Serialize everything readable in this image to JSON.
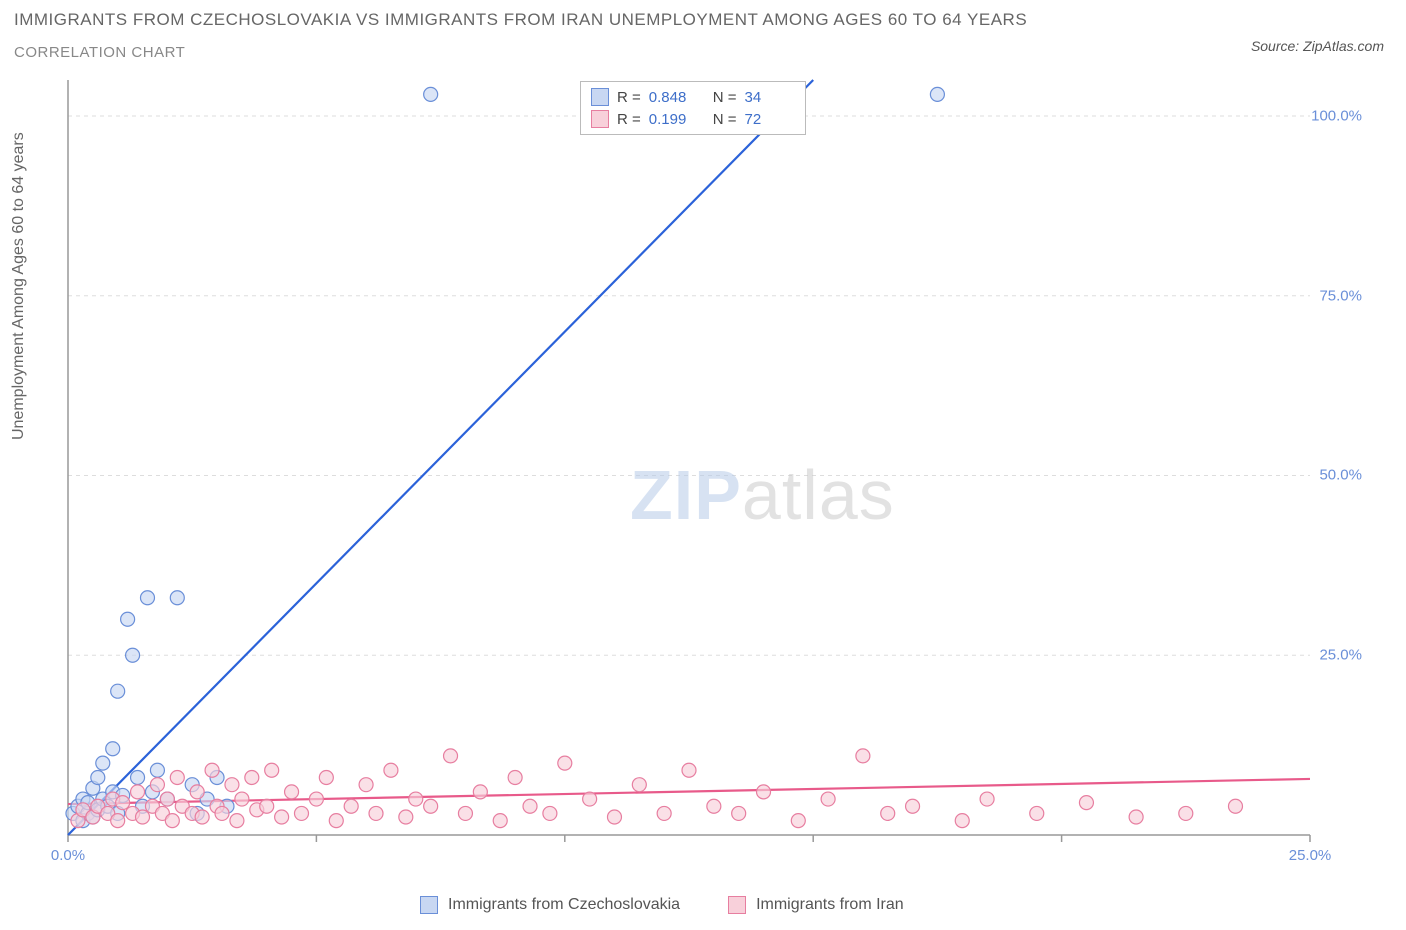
{
  "title": {
    "line1": "IMMIGRANTS FROM CZECHOSLOVAKIA VS IMMIGRANTS FROM IRAN UNEMPLOYMENT AMONG AGES 60 TO 64 YEARS",
    "line2": "CORRELATION CHART"
  },
  "source_text": "Source: ZipAtlas.com",
  "y_axis_label": "Unemployment Among Ages 60 to 64 years",
  "chart": {
    "type": "scatter-with-regression",
    "background_color": "#ffffff",
    "grid_color": "#dddddd",
    "axis_color": "#999999",
    "xlim": [
      0,
      25
    ],
    "ylim": [
      0,
      105
    ],
    "x_ticks": [
      0,
      5,
      10,
      15,
      20,
      25
    ],
    "x_tick_labels": [
      "0.0%",
      "",
      "",
      "",
      "",
      "25.0%"
    ],
    "y_ticks": [
      25,
      50,
      75,
      100
    ],
    "y_tick_labels": [
      "25.0%",
      "50.0%",
      "75.0%",
      "100.0%"
    ],
    "marker_radius": 7,
    "marker_stroke_width": 1.2,
    "line_width": 2.2,
    "series": [
      {
        "name": "Immigrants from Czechoslovakia",
        "color_fill": "#c8d7f2",
        "color_stroke": "#6a8fd8",
        "line_color": "#2b62d9",
        "R": "0.848",
        "N": "34",
        "regression": {
          "x1": 0,
          "y1": 0,
          "x2": 15.0,
          "y2": 105
        },
        "points": [
          [
            0.1,
            3.0
          ],
          [
            0.2,
            4.0
          ],
          [
            0.3,
            2.0
          ],
          [
            0.3,
            5.0
          ],
          [
            0.4,
            3.0
          ],
          [
            0.4,
            4.5
          ],
          [
            0.5,
            6.5
          ],
          [
            0.5,
            2.5
          ],
          [
            0.6,
            8.0
          ],
          [
            0.6,
            3.5
          ],
          [
            0.7,
            5.0
          ],
          [
            0.7,
            10.0
          ],
          [
            0.8,
            4.0
          ],
          [
            0.9,
            12.0
          ],
          [
            0.9,
            6.0
          ],
          [
            1.0,
            3.0
          ],
          [
            1.0,
            20.0
          ],
          [
            1.1,
            5.5
          ],
          [
            1.2,
            30.0
          ],
          [
            1.3,
            25.0
          ],
          [
            1.4,
            8.0
          ],
          [
            1.5,
            4.0
          ],
          [
            1.6,
            33.0
          ],
          [
            1.7,
            6.0
          ],
          [
            1.8,
            9.0
          ],
          [
            2.0,
            5.0
          ],
          [
            2.2,
            33.0
          ],
          [
            2.5,
            7.0
          ],
          [
            2.6,
            3.0
          ],
          [
            2.8,
            5.0
          ],
          [
            3.0,
            8.0
          ],
          [
            3.2,
            4.0
          ],
          [
            7.3,
            103.0
          ],
          [
            17.5,
            103.0
          ]
        ]
      },
      {
        "name": "Immigrants from Iran",
        "color_fill": "#f8d0da",
        "color_stroke": "#e77ea0",
        "line_color": "#e85a8a",
        "R": "0.199",
        "N": "72",
        "regression": {
          "x1": 0,
          "y1": 4.3,
          "x2": 25,
          "y2": 7.8
        },
        "points": [
          [
            0.2,
            2.0
          ],
          [
            0.3,
            3.5
          ],
          [
            0.5,
            2.5
          ],
          [
            0.6,
            4.0
          ],
          [
            0.8,
            3.0
          ],
          [
            0.9,
            5.0
          ],
          [
            1.0,
            2.0
          ],
          [
            1.1,
            4.5
          ],
          [
            1.3,
            3.0
          ],
          [
            1.4,
            6.0
          ],
          [
            1.5,
            2.5
          ],
          [
            1.7,
            4.0
          ],
          [
            1.8,
            7.0
          ],
          [
            1.9,
            3.0
          ],
          [
            2.0,
            5.0
          ],
          [
            2.1,
            2.0
          ],
          [
            2.2,
            8.0
          ],
          [
            2.3,
            4.0
          ],
          [
            2.5,
            3.0
          ],
          [
            2.6,
            6.0
          ],
          [
            2.7,
            2.5
          ],
          [
            2.9,
            9.0
          ],
          [
            3.0,
            4.0
          ],
          [
            3.1,
            3.0
          ],
          [
            3.3,
            7.0
          ],
          [
            3.4,
            2.0
          ],
          [
            3.5,
            5.0
          ],
          [
            3.7,
            8.0
          ],
          [
            3.8,
            3.5
          ],
          [
            4.0,
            4.0
          ],
          [
            4.1,
            9.0
          ],
          [
            4.3,
            2.5
          ],
          [
            4.5,
            6.0
          ],
          [
            4.7,
            3.0
          ],
          [
            5.0,
            5.0
          ],
          [
            5.2,
            8.0
          ],
          [
            5.4,
            2.0
          ],
          [
            5.7,
            4.0
          ],
          [
            6.0,
            7.0
          ],
          [
            6.2,
            3.0
          ],
          [
            6.5,
            9.0
          ],
          [
            6.8,
            2.5
          ],
          [
            7.0,
            5.0
          ],
          [
            7.3,
            4.0
          ],
          [
            7.7,
            11.0
          ],
          [
            8.0,
            3.0
          ],
          [
            8.3,
            6.0
          ],
          [
            8.7,
            2.0
          ],
          [
            9.0,
            8.0
          ],
          [
            9.3,
            4.0
          ],
          [
            9.7,
            3.0
          ],
          [
            10.0,
            10.0
          ],
          [
            10.5,
            5.0
          ],
          [
            11.0,
            2.5
          ],
          [
            11.5,
            7.0
          ],
          [
            12.0,
            3.0
          ],
          [
            12.5,
            9.0
          ],
          [
            13.0,
            4.0
          ],
          [
            13.5,
            3.0
          ],
          [
            14.0,
            6.0
          ],
          [
            14.7,
            2.0
          ],
          [
            15.3,
            5.0
          ],
          [
            16.0,
            11.0
          ],
          [
            16.5,
            3.0
          ],
          [
            17.0,
            4.0
          ],
          [
            18.0,
            2.0
          ],
          [
            18.5,
            5.0
          ],
          [
            19.5,
            3.0
          ],
          [
            20.5,
            4.5
          ],
          [
            21.5,
            2.5
          ],
          [
            22.5,
            3.0
          ],
          [
            23.5,
            4.0
          ]
        ]
      }
    ]
  },
  "legend_top": {
    "R_label": "R =",
    "N_label": "N ="
  },
  "legend_bottom_labels": [
    "Immigrants from Czechoslovakia",
    "Immigrants from Iran"
  ],
  "watermark": {
    "part1": "ZIP",
    "part2": "atlas"
  }
}
